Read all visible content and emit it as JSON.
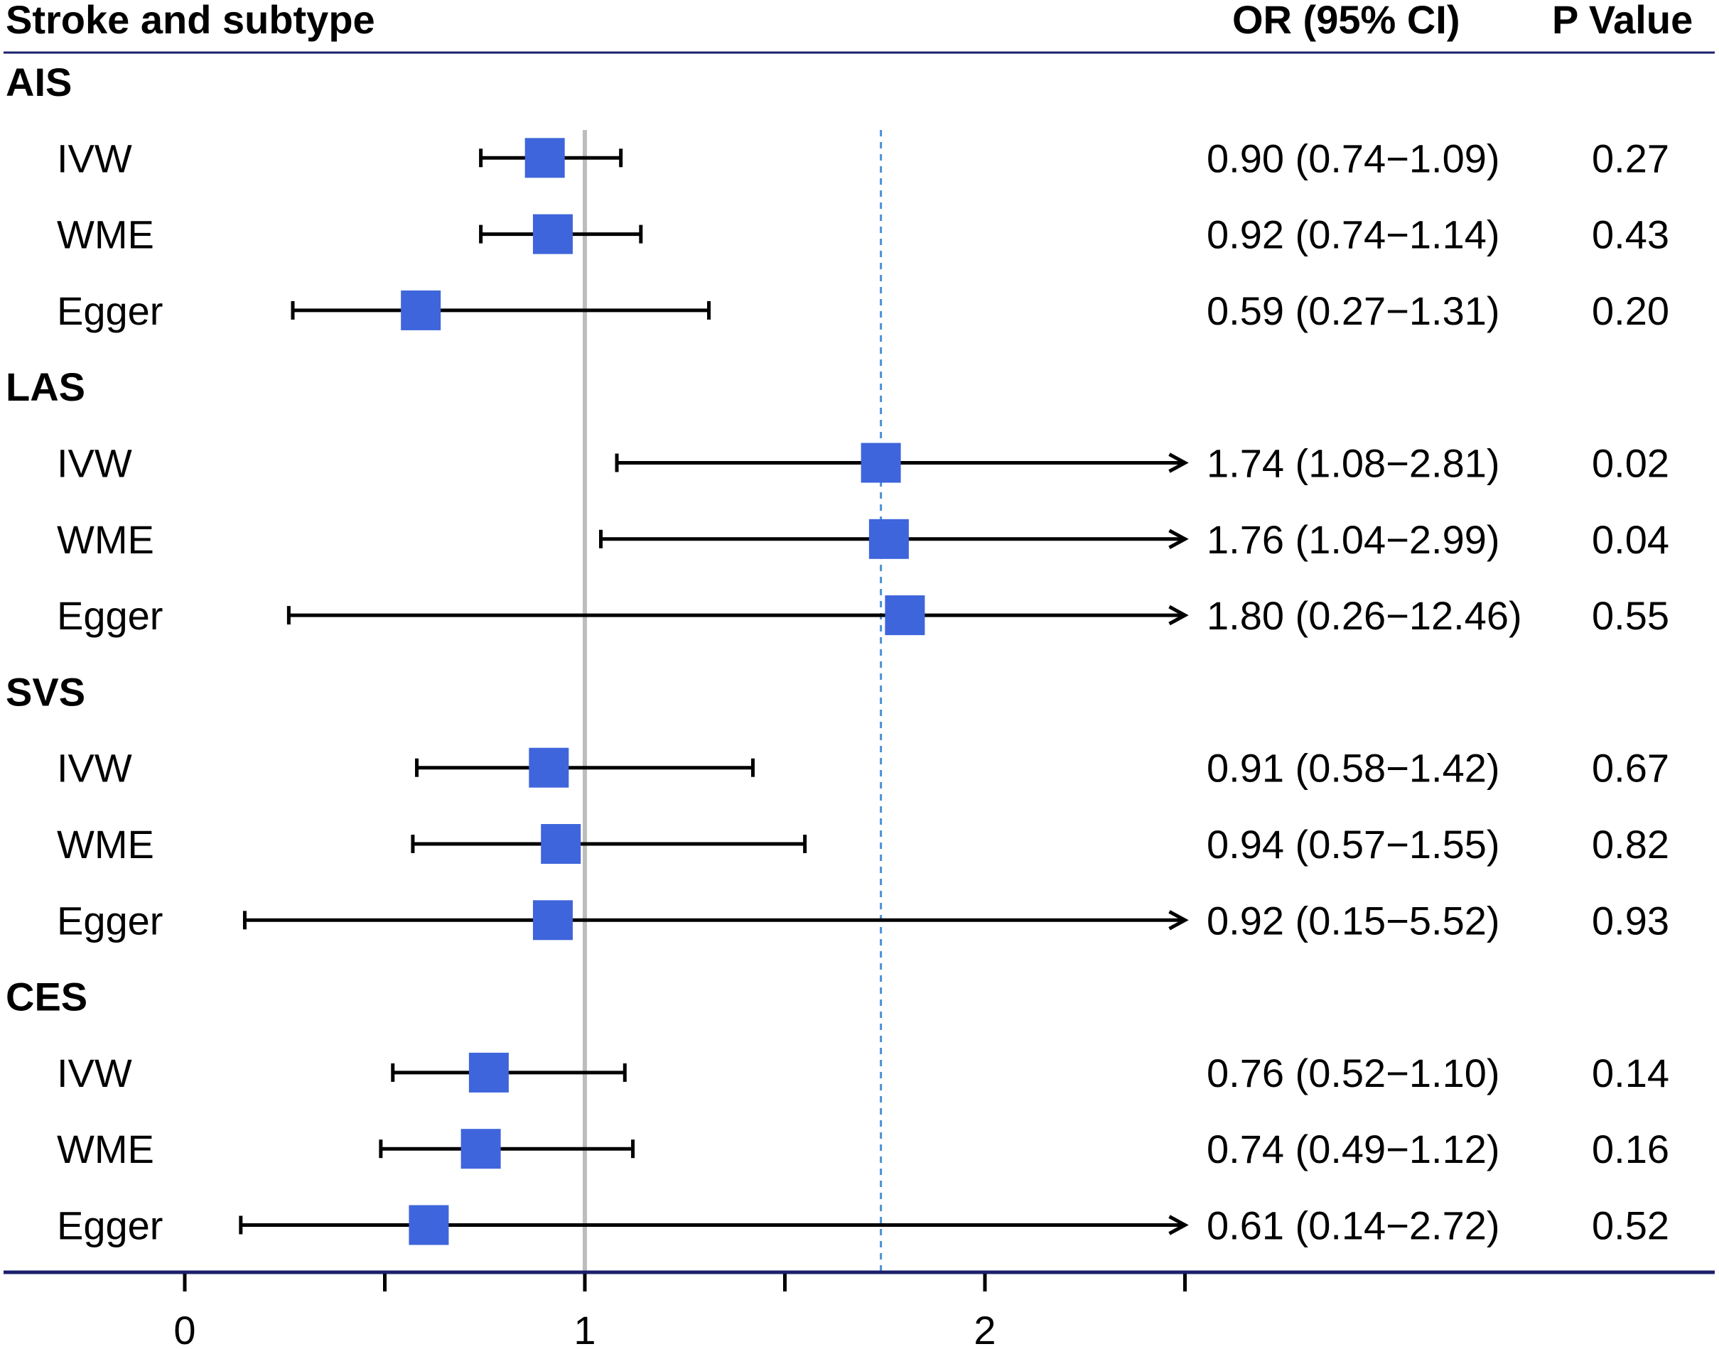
{
  "headers": {
    "label": "Stroke and subtype",
    "or": "OR (95% CI)",
    "p": "P Value"
  },
  "colors": {
    "marker": "#3E65DB",
    "whisker": "#000000",
    "reference_line": "#BDBDBD",
    "dashed_line": "#4A90D9",
    "rule": "#1A1F6B"
  },
  "chart_data": {
    "type": "forest",
    "xlim": [
      0,
      2.5
    ],
    "x_ticks": [
      0,
      0.5,
      1,
      1.5,
      2,
      2.5
    ],
    "x_tick_labels": [
      "0",
      "",
      "1",
      "",
      "2",
      ""
    ],
    "reference_line": 1,
    "dashed_line": 1.74,
    "groups": [
      {
        "name": "AIS",
        "rows": [
          {
            "method": "IVW",
            "or": 0.9,
            "lo": 0.74,
            "hi": 1.09,
            "or_text": "0.90 (0.74−1.09)",
            "p": "0.27"
          },
          {
            "method": "WME",
            "or": 0.92,
            "lo": 0.74,
            "hi": 1.14,
            "or_text": "0.92 (0.74−1.14)",
            "p": "0.43"
          },
          {
            "method": "Egger",
            "or": 0.59,
            "lo": 0.27,
            "hi": 1.31,
            "or_text": "0.59 (0.27−1.31)",
            "p": "0.20"
          }
        ]
      },
      {
        "name": "LAS",
        "rows": [
          {
            "method": "IVW",
            "or": 1.74,
            "lo": 1.08,
            "hi": 2.81,
            "or_text": "1.74 (1.08−2.81)",
            "p": "0.02"
          },
          {
            "method": "WME",
            "or": 1.76,
            "lo": 1.04,
            "hi": 2.99,
            "or_text": "1.76 (1.04−2.99)",
            "p": "0.04"
          },
          {
            "method": "Egger",
            "or": 1.8,
            "lo": 0.26,
            "hi": 12.46,
            "or_text": "1.80 (0.26−12.46)",
            "p": "0.55"
          }
        ]
      },
      {
        "name": "SVS",
        "rows": [
          {
            "method": "IVW",
            "or": 0.91,
            "lo": 0.58,
            "hi": 1.42,
            "or_text": "0.91 (0.58−1.42)",
            "p": "0.67"
          },
          {
            "method": "WME",
            "or": 0.94,
            "lo": 0.57,
            "hi": 1.55,
            "or_text": "0.94 (0.57−1.55)",
            "p": "0.82"
          },
          {
            "method": "Egger",
            "or": 0.92,
            "lo": 0.15,
            "hi": 5.52,
            "or_text": "0.92 (0.15−5.52)",
            "p": "0.93"
          }
        ]
      },
      {
        "name": "CES",
        "rows": [
          {
            "method": "IVW",
            "or": 0.76,
            "lo": 0.52,
            "hi": 1.1,
            "or_text": "0.76 (0.52−1.10)",
            "p": "0.14"
          },
          {
            "method": "WME",
            "or": 0.74,
            "lo": 0.49,
            "hi": 1.12,
            "or_text": "0.74 (0.49−1.12)",
            "p": "0.16"
          },
          {
            "method": "Egger",
            "or": 0.61,
            "lo": 0.14,
            "hi": 2.72,
            "or_text": "0.61 (0.14−2.72)",
            "p": "0.52"
          }
        ]
      }
    ]
  }
}
